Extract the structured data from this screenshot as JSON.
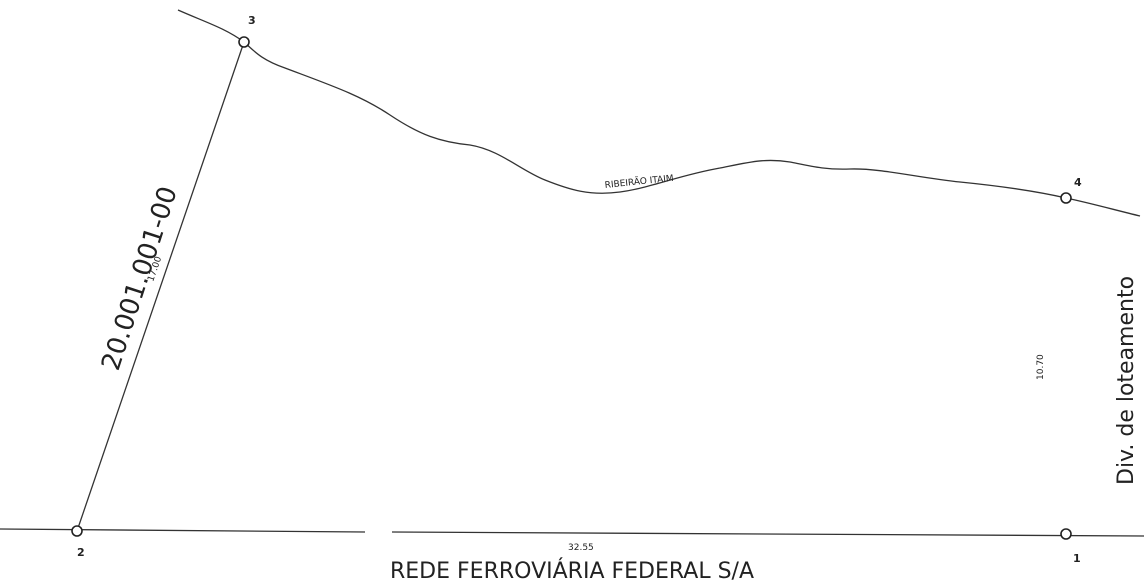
{
  "points": [
    {
      "label": "3"
    },
    {
      "label": "4"
    },
    {
      "label": "2"
    },
    {
      "label": "1"
    }
  ],
  "parcel_code": "20.001.001-00",
  "creek": "RIBEIRÃO ITAIM",
  "dimensions": {
    "left": "17.00",
    "right": "10.70",
    "bottom": "32.55"
  },
  "right_boundary": "Div. de loteamento",
  "bottom_boundary": "REDE FERROVIÁRIA FEDERAL S/A"
}
